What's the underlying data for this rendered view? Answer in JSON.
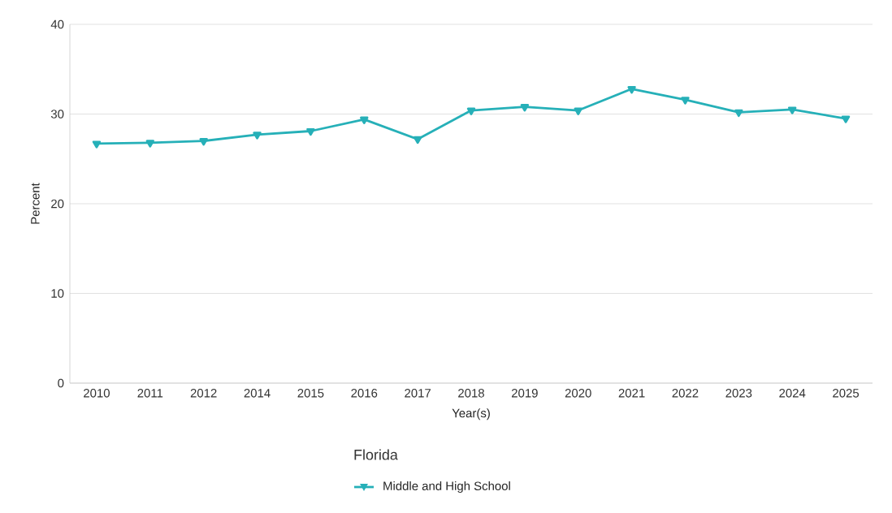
{
  "chart_data": {
    "type": "line",
    "xlabel": "Year(s)",
    "ylabel": "Percent",
    "legend_title": "Florida",
    "categories": [
      "2010",
      "2011",
      "2012",
      "2014",
      "2015",
      "2016",
      "2017",
      "2018",
      "2019",
      "2020",
      "2021",
      "2022",
      "2023",
      "2024",
      "2025"
    ],
    "series": [
      {
        "name": "Middle and High School",
        "color": "#26b0b8",
        "values": [
          26.7,
          26.8,
          27.0,
          27.7,
          28.1,
          29.4,
          27.2,
          30.4,
          30.8,
          30.4,
          32.8,
          31.6,
          30.2,
          30.5,
          29.5
        ]
      }
    ],
    "ylim": [
      0,
      40
    ],
    "yticks": [
      0,
      10,
      20,
      30,
      40
    ],
    "grid": "y",
    "legend": "bottom",
    "marker": "triangle",
    "line_style": "solid"
  }
}
